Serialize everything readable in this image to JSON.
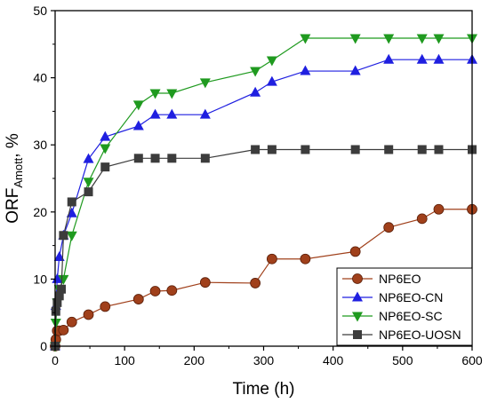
{
  "chart_data": {
    "type": "line",
    "xlabel": "Time (h)",
    "ylabel_main": "ORF",
    "ylabel_subscript": "Amott",
    "ylabel_unit": ", %",
    "xlim": [
      0,
      600
    ],
    "ylim": [
      0,
      50
    ],
    "xticks": [
      0,
      100,
      200,
      300,
      400,
      500,
      600
    ],
    "yticks": [
      0,
      10,
      20,
      30,
      40,
      50
    ],
    "grid": false,
    "legend_position": "bottom-right",
    "series": [
      {
        "name": "NP6EO",
        "color": "#a0401b",
        "marker": "circle",
        "x": [
          0,
          1,
          3,
          6,
          12,
          24,
          48,
          72,
          120,
          144,
          168,
          216,
          288,
          312,
          360,
          432,
          480,
          528,
          552,
          600
        ],
        "y": [
          0,
          1.0,
          2.3,
          2.3,
          2.4,
          3.6,
          4.7,
          5.9,
          7.0,
          8.2,
          8.3,
          9.5,
          9.4,
          13.0,
          13.0,
          14.1,
          17.7,
          19.0,
          20.4,
          20.4
        ]
      },
      {
        "name": "NP6EO-CN",
        "color": "#1f1fe0",
        "marker": "triangle-up",
        "x": [
          0,
          1,
          3,
          6,
          12,
          24,
          48,
          72,
          120,
          144,
          168,
          216,
          288,
          312,
          360,
          432,
          480,
          528,
          552,
          600
        ],
        "y": [
          0,
          6.0,
          10.0,
          13.3,
          16.5,
          19.8,
          27.9,
          31.2,
          32.8,
          34.5,
          34.5,
          34.5,
          37.8,
          39.4,
          41.0,
          41.0,
          42.7,
          42.7,
          42.7,
          42.7
        ]
      },
      {
        "name": "NP6EO-SC",
        "color": "#1f9a1f",
        "marker": "triangle-down",
        "x": [
          0,
          1,
          3,
          6,
          12,
          24,
          48,
          72,
          120,
          144,
          168,
          216,
          288,
          312,
          360,
          432,
          480,
          528,
          552,
          600
        ],
        "y": [
          0,
          3.5,
          6.5,
          8.5,
          10.0,
          16.5,
          24.5,
          29.5,
          36.0,
          37.7,
          37.7,
          39.3,
          41.0,
          42.6,
          45.9,
          45.9,
          45.9,
          45.9,
          45.9,
          45.9
        ]
      },
      {
        "name": "NP6EO-UOSN",
        "color": "#3c3c3c",
        "marker": "square",
        "x": [
          0,
          1,
          3,
          6,
          9,
          12,
          24,
          48,
          72,
          120,
          144,
          168,
          216,
          288,
          312,
          360,
          432,
          480,
          528,
          552,
          600
        ],
        "y": [
          0,
          5.2,
          6.5,
          7.5,
          8.5,
          16.5,
          21.5,
          23.0,
          26.7,
          28.0,
          28.0,
          28.0,
          28.0,
          29.3,
          29.3,
          29.3,
          29.3,
          29.3,
          29.3,
          29.3,
          29.3
        ]
      }
    ]
  }
}
